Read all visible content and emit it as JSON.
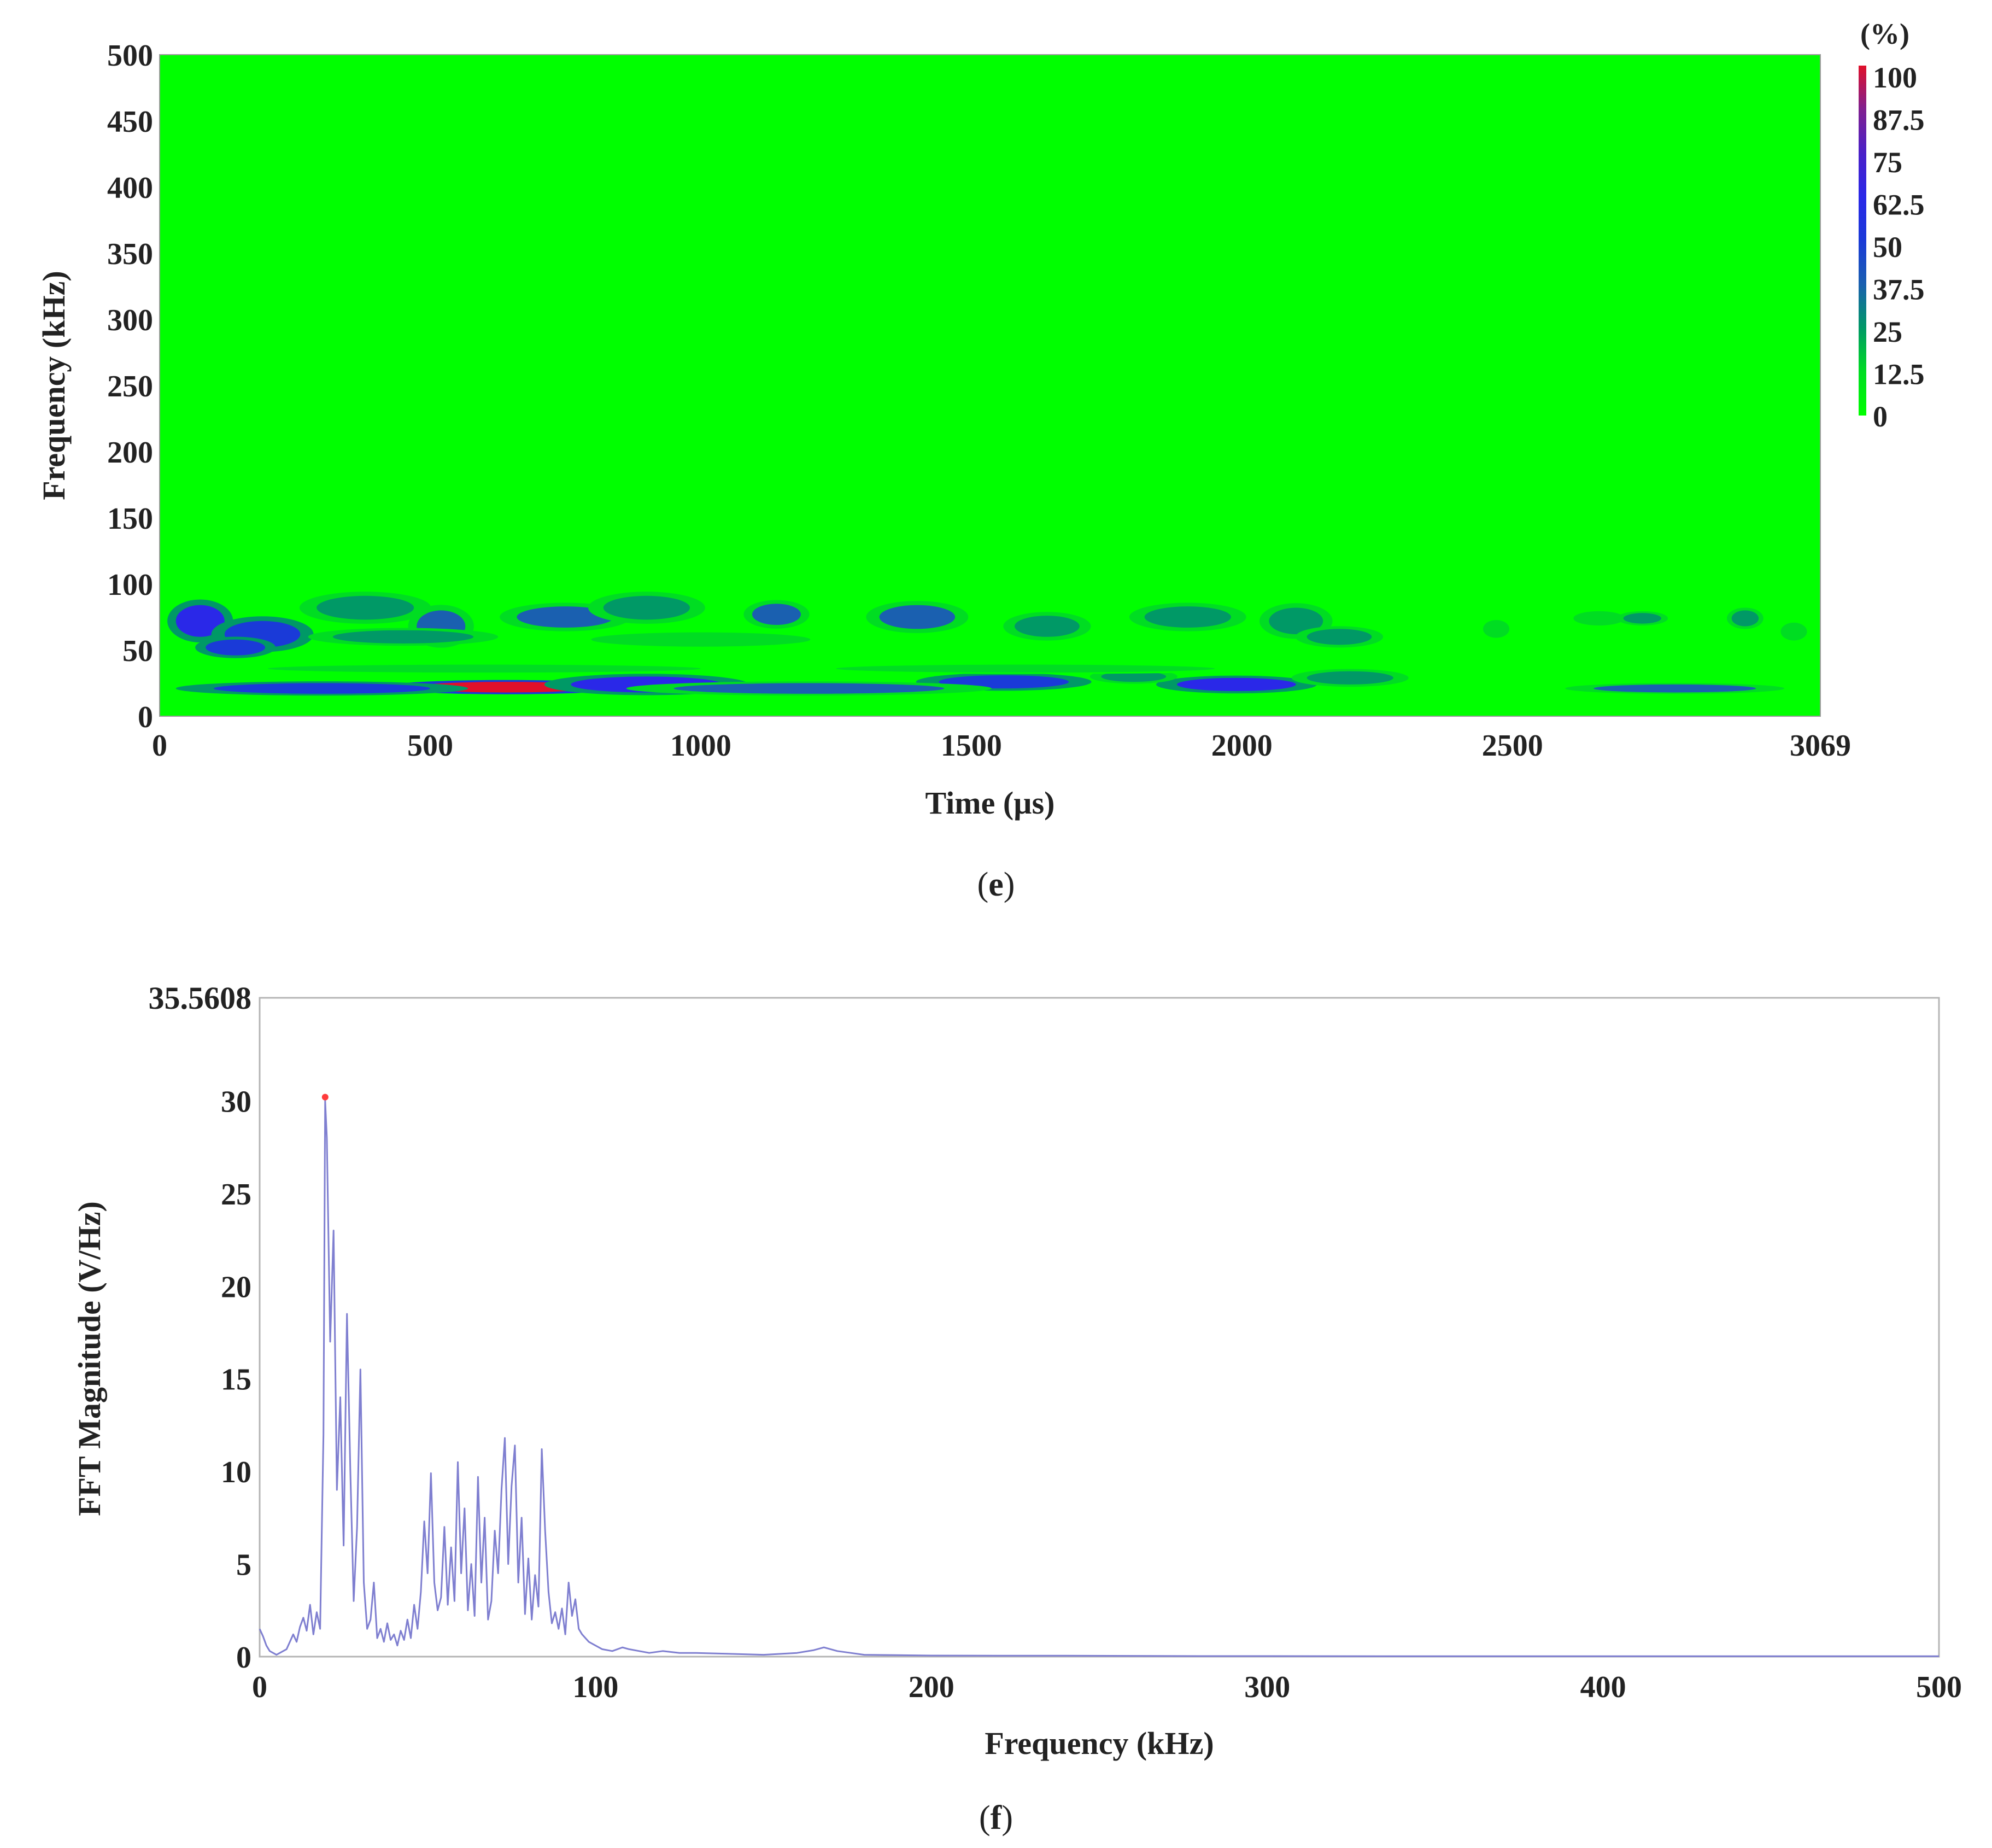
{
  "panel_e": {
    "caption_open": "(",
    "caption_letter": "e",
    "caption_close": ")"
  },
  "panel_f": {
    "caption_open": "(",
    "caption_letter": "f",
    "caption_close": ")"
  },
  "chart_data": [
    {
      "type": "heatmap",
      "title": "",
      "xlabel": "Time (µs)",
      "ylabel": "Frequency (kHz)",
      "xlim": [
        0,
        3069
      ],
      "ylim": [
        0,
        500
      ],
      "x_ticks": [
        "0",
        "500",
        "1000",
        "1500",
        "2000",
        "2500",
        "3069"
      ],
      "x_tick_values": [
        0,
        500,
        1000,
        1500,
        2000,
        2500,
        3069
      ],
      "y_ticks": [
        "0",
        "50",
        "100",
        "150",
        "200",
        "250",
        "300",
        "350",
        "400",
        "450",
        "500"
      ],
      "y_tick_values": [
        0,
        50,
        100,
        150,
        200,
        250,
        300,
        350,
        400,
        450,
        500
      ],
      "colorbar": {
        "unit_label": "(%)",
        "ticks": [
          "100",
          "87.5",
          "75",
          "62.5",
          "50",
          "37.5",
          "25",
          "12.5",
          "0"
        ],
        "tick_values": [
          100,
          87.5,
          75,
          62.5,
          50,
          37.5,
          25,
          12.5,
          0
        ],
        "colors": [
          "#00ff00",
          "#00dd22",
          "#009966",
          "#1a60b0",
          "#1a3ad8",
          "#2a28e8",
          "#4a20c8",
          "#802090",
          "#e0102a"
        ]
      },
      "background_color": "#00ff00",
      "blobs": [
        {
          "t": 640,
          "f": 22,
          "dt": 170,
          "df": 4,
          "level": 100
        },
        {
          "t": 900,
          "f": 24,
          "dt": 140,
          "df": 6,
          "level": 60
        },
        {
          "t": 300,
          "f": 21,
          "dt": 200,
          "df": 4,
          "level": 55
        },
        {
          "t": 1560,
          "f": 26,
          "dt": 120,
          "df": 5,
          "level": 55
        },
        {
          "t": 1990,
          "f": 24,
          "dt": 110,
          "df": 5,
          "level": 58
        },
        {
          "t": 1200,
          "f": 21,
          "dt": 250,
          "df": 4,
          "level": 40
        },
        {
          "t": 2800,
          "f": 21,
          "dt": 150,
          "df": 3,
          "level": 40
        },
        {
          "t": 2200,
          "f": 29,
          "dt": 80,
          "df": 5,
          "level": 30
        },
        {
          "t": 1800,
          "f": 30,
          "dt": 60,
          "df": 4,
          "level": 25
        },
        {
          "t": 75,
          "f": 72,
          "dt": 45,
          "df": 12,
          "level": 62
        },
        {
          "t": 190,
          "f": 62,
          "dt": 70,
          "df": 10,
          "level": 50
        },
        {
          "t": 140,
          "f": 52,
          "dt": 55,
          "df": 6,
          "level": 45
        },
        {
          "t": 520,
          "f": 68,
          "dt": 45,
          "df": 12,
          "level": 38
        },
        {
          "t": 380,
          "f": 82,
          "dt": 90,
          "df": 9,
          "level": 30
        },
        {
          "t": 750,
          "f": 75,
          "dt": 90,
          "df": 8,
          "level": 32
        },
        {
          "t": 900,
          "f": 82,
          "dt": 80,
          "df": 9,
          "level": 30
        },
        {
          "t": 1140,
          "f": 77,
          "dt": 45,
          "df": 8,
          "level": 40
        },
        {
          "t": 1400,
          "f": 75,
          "dt": 70,
          "df": 9,
          "level": 35
        },
        {
          "t": 1640,
          "f": 68,
          "dt": 60,
          "df": 8,
          "level": 28
        },
        {
          "t": 1900,
          "f": 75,
          "dt": 80,
          "df": 8,
          "level": 25
        },
        {
          "t": 2100,
          "f": 72,
          "dt": 50,
          "df": 10,
          "level": 30
        },
        {
          "t": 2180,
          "f": 60,
          "dt": 60,
          "df": 6,
          "level": 20
        },
        {
          "t": 2470,
          "f": 66,
          "dt": 18,
          "df": 5,
          "level": 18
        },
        {
          "t": 2660,
          "f": 74,
          "dt": 35,
          "df": 4,
          "level": 18
        },
        {
          "t": 2740,
          "f": 74,
          "dt": 35,
          "df": 4,
          "level": 20
        },
        {
          "t": 2930,
          "f": 74,
          "dt": 25,
          "df": 6,
          "level": 25
        },
        {
          "t": 3020,
          "f": 64,
          "dt": 18,
          "df": 5,
          "level": 18
        },
        {
          "t": 450,
          "f": 60,
          "dt": 130,
          "df": 5,
          "level": 20
        },
        {
          "t": 1000,
          "f": 58,
          "dt": 150,
          "df": 4,
          "level": 18
        },
        {
          "t": 1600,
          "f": 36,
          "dt": 350,
          "df": 3,
          "level": 12
        },
        {
          "t": 600,
          "f": 36,
          "dt": 400,
          "df": 3,
          "level": 12
        }
      ]
    },
    {
      "type": "line",
      "title": "",
      "xlabel": "Frequency (kHz)",
      "ylabel": "FFT Magnitude (V/Hz)",
      "xlim": [
        0,
        500
      ],
      "ylim": [
        0,
        35.5608
      ],
      "ymax_label": "35.5608",
      "x_ticks": [
        "0",
        "100",
        "200",
        "300",
        "400",
        "500"
      ],
      "x_tick_values": [
        0,
        100,
        200,
        300,
        400,
        500
      ],
      "y_ticks": [
        "0",
        "5",
        "10",
        "15",
        "20",
        "25",
        "30"
      ],
      "y_tick_values": [
        0,
        5,
        10,
        15,
        20,
        25,
        30
      ],
      "line_color": "#7f7fd0",
      "peak_marker": {
        "x": 19.5,
        "y": 30.2,
        "color": "#ff3b3b"
      },
      "series": [
        {
          "x": [
            0,
            1,
            2,
            3,
            4,
            5,
            6,
            7,
            8,
            9,
            10,
            11,
            12,
            13,
            14,
            15,
            16,
            17,
            18,
            19,
            19.5,
            20,
            21,
            22,
            23,
            24,
            25,
            26,
            27,
            28,
            29,
            30,
            31,
            32,
            33,
            34,
            35,
            36,
            37,
            38,
            39,
            40,
            41,
            42,
            43,
            44,
            45,
            46,
            47,
            48,
            49,
            50,
            51,
            52,
            53,
            54,
            55,
            56,
            57,
            58,
            59,
            60,
            61,
            62,
            63,
            64,
            65,
            66,
            67,
            68,
            69,
            70,
            71,
            72,
            73,
            74,
            75,
            76,
            77,
            78,
            79,
            80,
            81,
            82,
            83,
            84,
            85,
            86,
            87,
            88,
            89,
            90,
            91,
            92,
            93,
            94,
            95,
            96,
            98,
            100,
            102,
            105,
            108,
            110,
            113,
            116,
            120,
            125,
            130,
            140,
            150,
            160,
            165,
            168,
            172,
            176,
            180,
            190,
            200,
            220,
            240,
            260,
            280,
            300,
            350,
            400,
            450,
            500
          ],
          "y": [
            1.5,
            1.1,
            0.6,
            0.3,
            0.2,
            0.1,
            0.2,
            0.3,
            0.4,
            0.8,
            1.2,
            0.8,
            1.6,
            2.1,
            1.4,
            2.8,
            1.2,
            2.4,
            1.5,
            12.0,
            30.0,
            28.0,
            17.0,
            23.0,
            9.0,
            14.0,
            6.0,
            18.5,
            10.0,
            3.0,
            7.0,
            15.5,
            4.0,
            1.5,
            2.0,
            4.0,
            1.0,
            1.5,
            0.8,
            1.8,
            0.9,
            1.2,
            0.6,
            1.4,
            0.9,
            2.0,
            1.0,
            2.8,
            1.5,
            3.5,
            7.3,
            4.5,
            9.9,
            4.0,
            2.5,
            3.2,
            7.0,
            2.8,
            5.9,
            3.0,
            10.5,
            4.5,
            8.0,
            2.5,
            5.0,
            2.2,
            9.7,
            4.0,
            7.5,
            2.0,
            3.0,
            6.8,
            4.5,
            9.0,
            11.8,
            5.0,
            9.2,
            11.4,
            4.0,
            7.5,
            2.3,
            5.3,
            2.0,
            4.4,
            2.7,
            11.2,
            6.8,
            3.5,
            1.8,
            2.4,
            1.5,
            2.6,
            1.2,
            4.0,
            2.2,
            3.1,
            1.5,
            1.2,
            0.8,
            0.6,
            0.4,
            0.3,
            0.5,
            0.4,
            0.3,
            0.2,
            0.3,
            0.2,
            0.2,
            0.15,
            0.1,
            0.2,
            0.35,
            0.5,
            0.3,
            0.2,
            0.1,
            0.08,
            0.06,
            0.05,
            0.05,
            0.04,
            0.03,
            0.03,
            0.02,
            0.02,
            0.02,
            0.02
          ]
        }
      ]
    }
  ]
}
